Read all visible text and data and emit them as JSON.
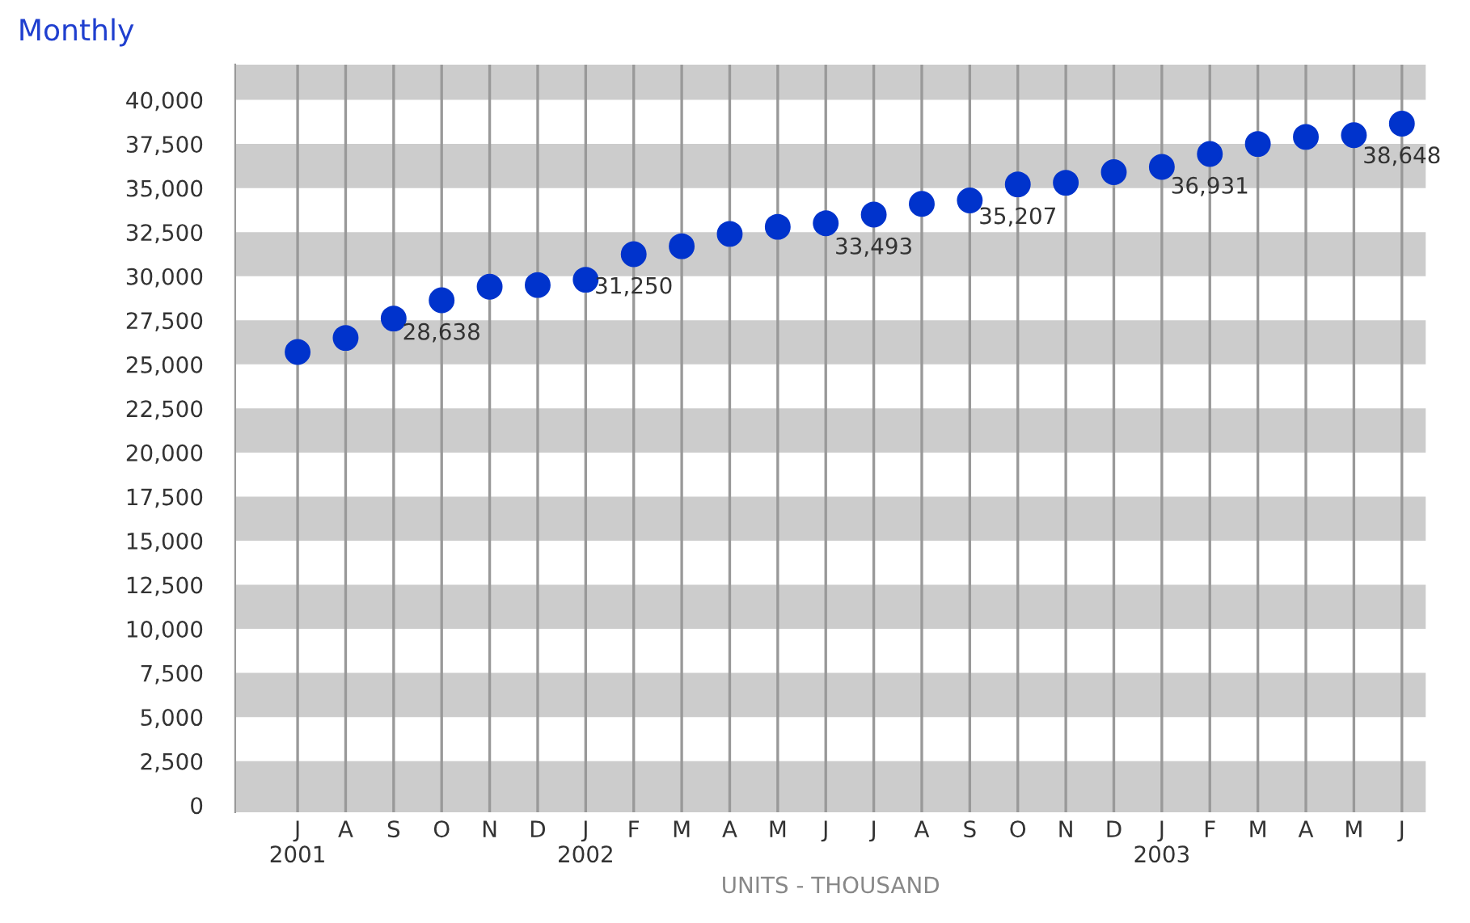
{
  "chart_data": {
    "type": "scatter",
    "title": "Monthly",
    "xlabel": "UNITS - THOUSAND",
    "categories": [
      "J\n2001",
      "A",
      "S",
      "O",
      "N",
      "D",
      "J\n2002",
      "F",
      "M",
      "A",
      "M",
      "J",
      "J",
      "A",
      "S",
      "O",
      "N",
      "D",
      "J\n2003",
      "F",
      "M",
      "A",
      "M",
      "J"
    ],
    "series": [
      {
        "color": "#0033cc",
        "values": [
          25700,
          26500,
          27600,
          28638,
          29400,
          29500,
          29800,
          31250,
          31700,
          32400,
          32800,
          33000,
          33493,
          34100,
          34300,
          35207,
          35300,
          35900,
          36200,
          36931,
          37500,
          37900,
          38000,
          38648
        ],
        "value_labels": [
          null,
          null,
          null,
          "28,638",
          null,
          null,
          null,
          "31,250",
          null,
          null,
          null,
          null,
          "33,493",
          null,
          null,
          "35,207",
          null,
          null,
          null,
          "36,931",
          null,
          null,
          null,
          "38,648"
        ]
      }
    ],
    "marker": "circle",
    "grid": "x",
    "ylim": [
      -400,
      42000
    ],
    "yticks": [
      0,
      {
        "value": 2500,
        "label": "2,500"
      },
      {
        "value": 5000,
        "label": "5,000"
      },
      {
        "value": 7500,
        "label": "7,500"
      },
      {
        "value": 10000,
        "label": "10,000"
      },
      {
        "value": 12500,
        "label": "12,500"
      },
      {
        "value": 15000,
        "label": "15,000"
      },
      {
        "value": 17500,
        "label": "17,500"
      },
      {
        "value": 20000,
        "label": "20,000"
      },
      {
        "value": 22500,
        "label": "22,500"
      },
      {
        "value": 25000,
        "label": "25,000"
      },
      {
        "value": 27500,
        "label": "27,500"
      },
      {
        "value": 30000,
        "label": "30,000"
      },
      {
        "value": 32500,
        "label": "32,500"
      },
      {
        "value": 35000,
        "label": "35,000"
      },
      {
        "value": 37500,
        "label": "37,500"
      },
      {
        "value": 40000,
        "label": "40,000"
      }
    ],
    "bands": [
      {
        "axis": "y",
        "from": -400,
        "to": 2500,
        "color": "#cccccc"
      },
      {
        "axis": "y",
        "from": 5000,
        "to": 7500,
        "color": "#cccccc"
      },
      {
        "axis": "y",
        "from": 10000,
        "to": 12500,
        "color": "#cccccc"
      },
      {
        "axis": "y",
        "from": 15000,
        "to": 17500,
        "color": "#cccccc"
      },
      {
        "axis": "y",
        "from": 20000,
        "to": 22500,
        "color": "#cccccc"
      },
      {
        "axis": "y",
        "from": 25000,
        "to": 27500,
        "color": "#cccccc"
      },
      {
        "axis": "y",
        "from": 30000,
        "to": 32500,
        "color": "#cccccc"
      },
      {
        "axis": "y",
        "from": 35000,
        "to": 37500,
        "color": "#cccccc"
      },
      {
        "axis": "y",
        "from": 40000,
        "to": 42000,
        "color": "#cccccc"
      }
    ]
  }
}
